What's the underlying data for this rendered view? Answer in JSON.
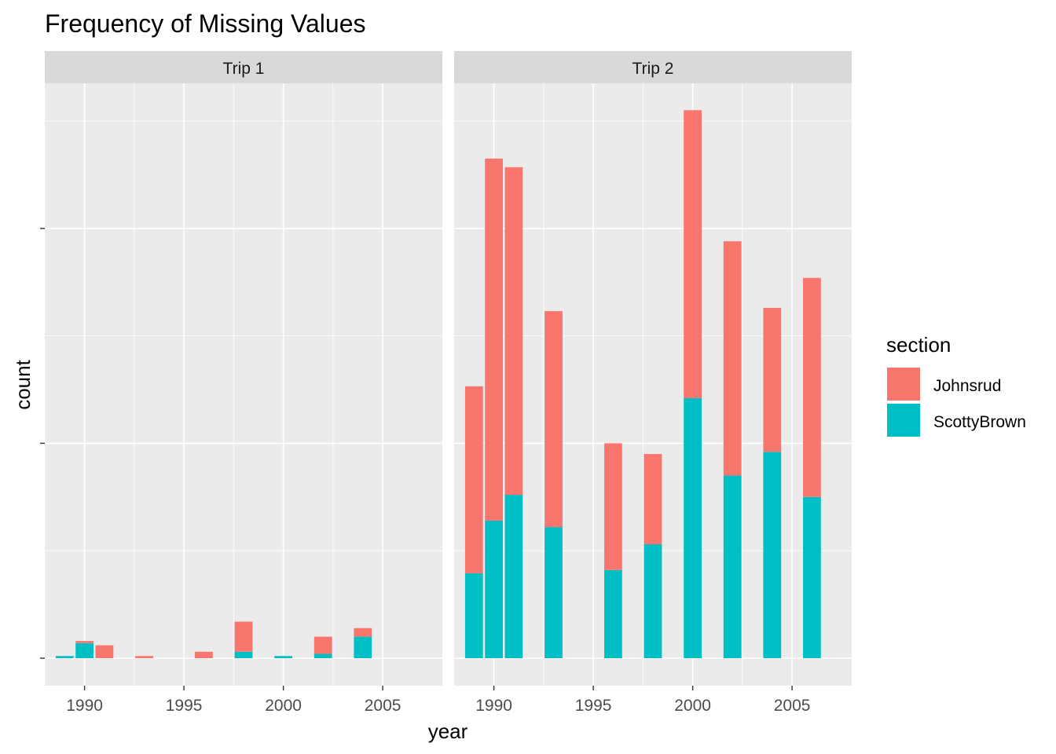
{
  "chart_data": {
    "type": "bar",
    "stacked": true,
    "title": "Frequency of Missing Values",
    "xlabel": "year",
    "ylabel": "count",
    "xlim": [
      1988,
      2008
    ],
    "x_ticks": [
      "1990",
      "1995",
      "2000",
      "2005"
    ],
    "y_tick_labels_shown": false,
    "ylim": [
      0,
      52
    ],
    "y_major": [
      0,
      20,
      40
    ],
    "y_minor": [
      10,
      30,
      50
    ],
    "grid": true,
    "legend": {
      "title": "section",
      "position": "right",
      "entries": [
        {
          "name": "Johnsrud",
          "color": "#F8766D"
        },
        {
          "name": "ScottyBrown",
          "color": "#00BFC4"
        }
      ]
    },
    "facets": [
      {
        "label": "Trip 1",
        "bars": [
          {
            "year": 1989,
            "ScottyBrown": 0.2,
            "Johnsrud": 0
          },
          {
            "year": 1990,
            "ScottyBrown": 1.4,
            "Johnsrud": 0.2
          },
          {
            "year": 1991,
            "ScottyBrown": 0,
            "Johnsrud": 1.2
          },
          {
            "year": 1993,
            "ScottyBrown": 0,
            "Johnsrud": 0.2
          },
          {
            "year": 1996,
            "ScottyBrown": 0,
            "Johnsrud": 0.6
          },
          {
            "year": 1998,
            "ScottyBrown": 0.6,
            "Johnsrud": 2.8
          },
          {
            "year": 2000,
            "ScottyBrown": 0.2,
            "Johnsrud": 0
          },
          {
            "year": 2002,
            "ScottyBrown": 0.4,
            "Johnsrud": 1.6
          },
          {
            "year": 2004,
            "ScottyBrown": 2.0,
            "Johnsrud": 0.8
          }
        ]
      },
      {
        "label": "Trip 2",
        "bars": [
          {
            "year": 1989,
            "ScottyBrown": 7.9,
            "Johnsrud": 17.4
          },
          {
            "year": 1990,
            "ScottyBrown": 12.8,
            "Johnsrud": 33.7
          },
          {
            "year": 1991,
            "ScottyBrown": 15.2,
            "Johnsrud": 30.5
          },
          {
            "year": 1993,
            "ScottyBrown": 12.2,
            "Johnsrud": 20.1
          },
          {
            "year": 1996,
            "ScottyBrown": 8.2,
            "Johnsrud": 11.8
          },
          {
            "year": 1998,
            "ScottyBrown": 10.6,
            "Johnsrud": 8.4
          },
          {
            "year": 2000,
            "ScottyBrown": 24.2,
            "Johnsrud": 26.8
          },
          {
            "year": 2002,
            "ScottyBrown": 17.0,
            "Johnsrud": 21.8
          },
          {
            "year": 2004,
            "ScottyBrown": 19.2,
            "Johnsrud": 13.4
          },
          {
            "year": 2006,
            "ScottyBrown": 15.0,
            "Johnsrud": 20.4
          }
        ]
      }
    ]
  }
}
